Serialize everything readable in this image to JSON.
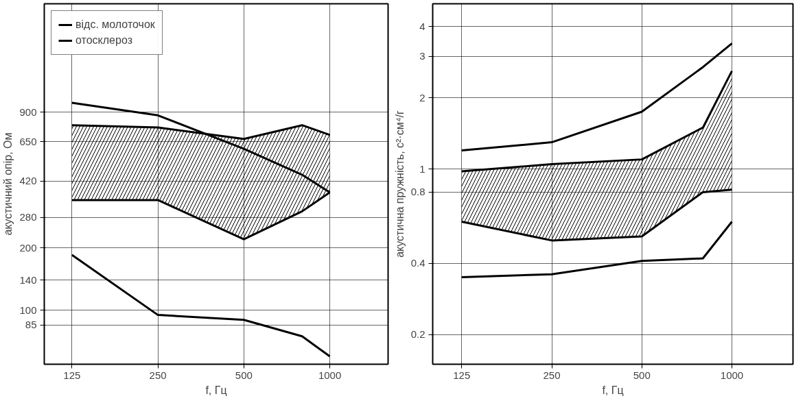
{
  "chart_data": [
    {
      "type": "line",
      "ylabel": "акустичний опір, Ом",
      "xlabel": "f, Гц",
      "log": "xy",
      "xlim": [
        100,
        1600
      ],
      "ylim": [
        55,
        3000
      ],
      "xticks": [
        125,
        250,
        500,
        1000
      ],
      "yticks": [
        85,
        100,
        140,
        200,
        280,
        420,
        650,
        900
      ],
      "grid": true,
      "legend": "top left",
      "x": [
        125,
        250,
        500,
        800,
        1000
      ],
      "series": [
        {
          "name": "відс. молоточок",
          "color": "#000000",
          "values": [
            185,
            95,
            90,
            75,
            60
          ]
        },
        {
          "name": "отосклероз",
          "color": "#000000",
          "values": [
            1000,
            870,
            600,
            450,
            370
          ]
        },
        {
          "color": "#000000",
          "values": [
            780,
            760,
            670,
            780,
            700
          ]
        },
        {
          "color": "#000000",
          "values": [
            340,
            340,
            220,
            300,
            370
          ]
        },
        {
          "type": "area",
          "color": "#000000",
          "values": [
            null,
            null,
            null,
            null,
            null
          ],
          "upper": [
            780,
            760,
            670,
            780,
            700
          ],
          "lower": [
            340,
            340,
            220,
            300,
            370
          ]
        }
      ]
    },
    {
      "type": "line",
      "ylabel": "акустична пружність, с²·см⁴/г",
      "xlabel": "f, Гц",
      "log": "xy",
      "xlim": [
        100,
        1600
      ],
      "ylim": [
        0.15,
        5
      ],
      "xticks": [
        125,
        250,
        500,
        1000
      ],
      "yticks": [
        0.2,
        0.4,
        0.8,
        1,
        2,
        3,
        4
      ],
      "grid": true,
      "x": [
        125,
        250,
        500,
        800,
        1000
      ],
      "series": [
        {
          "color": "#000000",
          "values": [
            1.2,
            1.3,
            1.75,
            2.7,
            3.4
          ]
        },
        {
          "color": "#000000",
          "values": [
            0.35,
            0.36,
            0.41,
            0.42,
            0.6
          ]
        },
        {
          "color": "#000000",
          "values": [
            0.98,
            1.05,
            1.1,
            1.5,
            2.6
          ]
        },
        {
          "color": "#000000",
          "values": [
            0.6,
            0.5,
            0.52,
            0.8,
            0.82
          ]
        },
        {
          "type": "area",
          "color": "#000000",
          "values": [
            null,
            null,
            null,
            null,
            null
          ],
          "upper": [
            0.98,
            1.05,
            1.1,
            1.5,
            2.6
          ],
          "lower": [
            0.6,
            0.5,
            0.52,
            0.8,
            0.82
          ]
        }
      ]
    }
  ]
}
